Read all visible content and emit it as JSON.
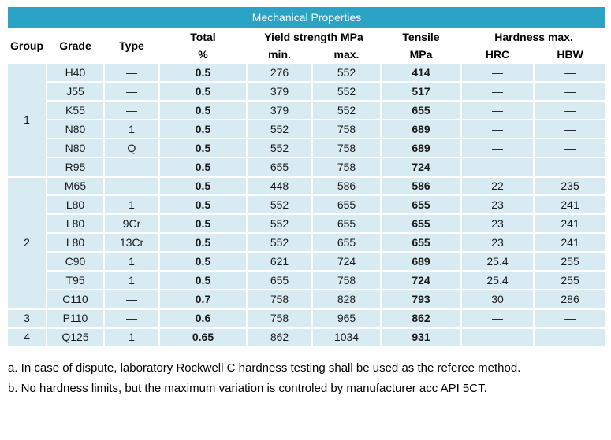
{
  "table": {
    "title": "Mechanical Properties",
    "headers": {
      "group": "Group",
      "grade": "Grade",
      "type": "Type",
      "total": "Total",
      "total_unit": "%",
      "yield_strength": "Yield strength MPa",
      "yield_min": "min.",
      "yield_max": "max.",
      "tensile": "Tensile",
      "tensile_unit": "MPa",
      "hardness": "Hardness max.",
      "hardness_hrc": "HRC",
      "hardness_hbw": "HBW"
    },
    "groups": [
      {
        "group": "1",
        "rows": [
          {
            "grade": "H40",
            "type": "—",
            "total": "0.5",
            "yield_min": "276",
            "yield_max": "552",
            "tensile": "414",
            "hrc": "—",
            "hbw": "—"
          },
          {
            "grade": "J55",
            "type": "—",
            "total": "0.5",
            "yield_min": "379",
            "yield_max": "552",
            "tensile": "517",
            "hrc": "—",
            "hbw": "—"
          },
          {
            "grade": "K55",
            "type": "—",
            "total": "0.5",
            "yield_min": "379",
            "yield_max": "552",
            "tensile": "655",
            "hrc": "—",
            "hbw": "—"
          },
          {
            "grade": "N80",
            "type": "1",
            "total": "0.5",
            "yield_min": "552",
            "yield_max": "758",
            "tensile": "689",
            "hrc": "—",
            "hbw": "—"
          },
          {
            "grade": "N80",
            "type": "Q",
            "total": "0.5",
            "yield_min": "552",
            "yield_max": "758",
            "tensile": "689",
            "hrc": "—",
            "hbw": "—"
          },
          {
            "grade": "R95",
            "type": "—",
            "total": "0.5",
            "yield_min": "655",
            "yield_max": "758",
            "tensile": "724",
            "hrc": "—",
            "hbw": "—"
          }
        ]
      },
      {
        "group": "2",
        "rows": [
          {
            "grade": "M65",
            "type": "—",
            "total": "0.5",
            "yield_min": "448",
            "yield_max": "586",
            "tensile": "586",
            "hrc": "22",
            "hbw": "235"
          },
          {
            "grade": "L80",
            "type": "1",
            "total": "0.5",
            "yield_min": "552",
            "yield_max": "655",
            "tensile": "655",
            "hrc": "23",
            "hbw": "241"
          },
          {
            "grade": "L80",
            "type": "9Cr",
            "total": "0.5",
            "yield_min": "552",
            "yield_max": "655",
            "tensile": "655",
            "hrc": "23",
            "hbw": "241"
          },
          {
            "grade": "L80",
            "type": "13Cr",
            "total": "0.5",
            "yield_min": "552",
            "yield_max": "655",
            "tensile": "655",
            "hrc": "23",
            "hbw": "241"
          },
          {
            "grade": "C90",
            "type": "1",
            "total": "0.5",
            "yield_min": "621",
            "yield_max": "724",
            "tensile": "689",
            "hrc": "25.4",
            "hbw": "255"
          },
          {
            "grade": "T95",
            "type": "1",
            "total": "0.5",
            "yield_min": "655",
            "yield_max": "758",
            "tensile": "724",
            "hrc": "25.4",
            "hbw": "255"
          },
          {
            "grade": "C110",
            "type": "—",
            "total": "0.7",
            "yield_min": "758",
            "yield_max": "828",
            "tensile": "793",
            "hrc": "30",
            "hbw": "286"
          }
        ]
      },
      {
        "group": "3",
        "rows": [
          {
            "grade": "P110",
            "type": "—",
            "total": "0.6",
            "yield_min": "758",
            "yield_max": "965",
            "tensile": "862",
            "hrc": "—",
            "hbw": "—"
          }
        ]
      },
      {
        "group": "4",
        "rows": [
          {
            "grade": "Q125",
            "type": "1",
            "total": "0.65",
            "yield_min": "862",
            "yield_max": "1034",
            "tensile": "931",
            "hrc": "",
            "hbw": "—"
          }
        ]
      }
    ]
  },
  "footnotes": [
    "a. In case of dispute, laboratory Rockwell C hardness testing shall be used as the referee method.",
    "b. No hardness limits, but the maximum variation is controled by manufacturer acc API 5CT."
  ],
  "colors": {
    "title_bg": "#2BA3C4",
    "title_text": "#FFFFFF",
    "cell_bg": "#D9EBF2",
    "cell_border": "#FFFFFF",
    "outer_border": "#1E89A1",
    "text": "#000000"
  }
}
